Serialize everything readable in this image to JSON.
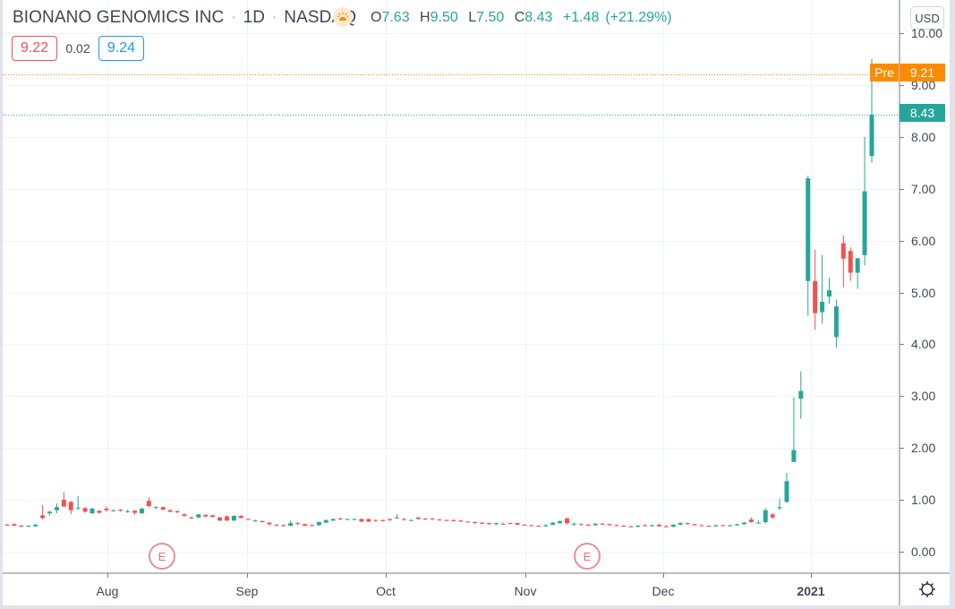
{
  "header": {
    "symbol_name": "BIONANO GENOMICS INC",
    "interval": "1D",
    "exchange": "NASDAQ",
    "separator": "·",
    "market_status_icon": "pre-market-sun-icon",
    "ohlc": {
      "open_label": "O",
      "open": "7.63",
      "high_label": "H",
      "high": "9.50",
      "low_label": "L",
      "low": "7.50",
      "close_label": "C",
      "close": "8.43",
      "change": "+1.48",
      "change_pct": "(+21.29%)"
    },
    "bid": "9.22",
    "spread": "0.02",
    "ask": "9.24"
  },
  "price_axis": {
    "currency": "USD",
    "ticks": [
      "10.00",
      "9.00",
      "8.00",
      "7.00",
      "6.00",
      "5.00",
      "4.00",
      "3.00",
      "2.00",
      "1.00",
      "0.00"
    ],
    "last_price_tag": "8.43",
    "premarket_label": "Pre",
    "premarket_price_tag": "9.21"
  },
  "time_axis": {
    "ticks": [
      "Aug",
      "Sep",
      "Oct",
      "Nov",
      "Dec",
      "2021"
    ],
    "settings_icon": "gear-icon"
  },
  "events": [
    {
      "type": "earnings",
      "label": "E"
    },
    {
      "type": "earnings",
      "label": "E"
    }
  ],
  "colors": {
    "up": "#26a69a",
    "down": "#ef5350",
    "premarket": "#fb8c00",
    "grid": "#f0f3fa",
    "axis_text": "#434651",
    "bid": "#ef5350",
    "ask": "#2196f3"
  },
  "chart_data": {
    "type": "candlestick",
    "title": "BIONANO GENOMICS INC · 1D · NASDAQ",
    "xlabel": "",
    "ylabel": "USD",
    "ylim": [
      -0.2,
      10.4
    ],
    "grid": true,
    "legend_position": "top-left",
    "x_ticks": [
      "Aug",
      "Sep",
      "Oct",
      "Nov",
      "Dec",
      "2021"
    ],
    "y_ticks": [
      0,
      1,
      2,
      3,
      4,
      5,
      6,
      7,
      8,
      9,
      10
    ],
    "last_close": 8.43,
    "premarket_price": 9.21,
    "annotations": [
      "Earnings (E) mid-Aug",
      "Earnings (E) mid-Nov",
      "Pre 9.21"
    ],
    "candles": [
      {
        "o": 0.52,
        "h": 0.54,
        "l": 0.5,
        "c": 0.51
      },
      {
        "o": 0.53,
        "h": 0.55,
        "l": 0.5,
        "c": 0.5
      },
      {
        "o": 0.5,
        "h": 0.52,
        "l": 0.47,
        "c": 0.49
      },
      {
        "o": 0.49,
        "h": 0.51,
        "l": 0.48,
        "c": 0.5
      },
      {
        "o": 0.49,
        "h": 0.54,
        "l": 0.48,
        "c": 0.52
      },
      {
        "o": 0.7,
        "h": 0.9,
        "l": 0.62,
        "c": 0.65
      },
      {
        "o": 0.74,
        "h": 0.79,
        "l": 0.7,
        "c": 0.77
      },
      {
        "o": 0.8,
        "h": 0.93,
        "l": 0.74,
        "c": 0.86
      },
      {
        "o": 1.0,
        "h": 1.15,
        "l": 0.88,
        "c": 0.87
      },
      {
        "o": 0.96,
        "h": 0.98,
        "l": 0.72,
        "c": 0.8
      },
      {
        "o": 0.85,
        "h": 1.07,
        "l": 0.81,
        "c": 0.85
      },
      {
        "o": 0.84,
        "h": 0.86,
        "l": 0.75,
        "c": 0.77
      },
      {
        "o": 0.74,
        "h": 0.85,
        "l": 0.73,
        "c": 0.83
      },
      {
        "o": 0.79,
        "h": 0.8,
        "l": 0.73,
        "c": 0.75
      },
      {
        "o": 0.83,
        "h": 0.87,
        "l": 0.77,
        "c": 0.8
      },
      {
        "o": 0.79,
        "h": 0.82,
        "l": 0.77,
        "c": 0.8
      },
      {
        "o": 0.81,
        "h": 0.82,
        "l": 0.77,
        "c": 0.79
      },
      {
        "o": 0.78,
        "h": 0.81,
        "l": 0.75,
        "c": 0.78
      },
      {
        "o": 0.79,
        "h": 0.8,
        "l": 0.71,
        "c": 0.75
      },
      {
        "o": 0.74,
        "h": 0.85,
        "l": 0.73,
        "c": 0.83
      },
      {
        "o": 0.98,
        "h": 1.05,
        "l": 0.85,
        "c": 0.88
      },
      {
        "o": 0.86,
        "h": 0.88,
        "l": 0.82,
        "c": 0.86
      },
      {
        "o": 0.86,
        "h": 0.87,
        "l": 0.8,
        "c": 0.81
      },
      {
        "o": 0.8,
        "h": 0.82,
        "l": 0.76,
        "c": 0.77
      },
      {
        "o": 0.78,
        "h": 0.8,
        "l": 0.74,
        "c": 0.76
      },
      {
        "o": 0.72,
        "h": 0.74,
        "l": 0.67,
        "c": 0.69
      },
      {
        "o": 0.66,
        "h": 0.68,
        "l": 0.63,
        "c": 0.64
      },
      {
        "o": 0.66,
        "h": 0.73,
        "l": 0.65,
        "c": 0.72
      },
      {
        "o": 0.71,
        "h": 0.72,
        "l": 0.66,
        "c": 0.68
      },
      {
        "o": 0.7,
        "h": 0.71,
        "l": 0.66,
        "c": 0.67
      },
      {
        "o": 0.66,
        "h": 0.67,
        "l": 0.59,
        "c": 0.6
      },
      {
        "o": 0.68,
        "h": 0.7,
        "l": 0.59,
        "c": 0.6
      },
      {
        "o": 0.6,
        "h": 0.7,
        "l": 0.59,
        "c": 0.69
      },
      {
        "o": 0.69,
        "h": 0.71,
        "l": 0.64,
        "c": 0.65
      },
      {
        "o": 0.63,
        "h": 0.64,
        "l": 0.61,
        "c": 0.62
      },
      {
        "o": 0.6,
        "h": 0.62,
        "l": 0.58,
        "c": 0.6
      },
      {
        "o": 0.59,
        "h": 0.6,
        "l": 0.56,
        "c": 0.57
      },
      {
        "o": 0.56,
        "h": 0.57,
        "l": 0.5,
        "c": 0.53
      },
      {
        "o": 0.52,
        "h": 0.53,
        "l": 0.49,
        "c": 0.51
      },
      {
        "o": 0.51,
        "h": 0.53,
        "l": 0.48,
        "c": 0.5
      },
      {
        "o": 0.5,
        "h": 0.6,
        "l": 0.49,
        "c": 0.55
      },
      {
        "o": 0.55,
        "h": 0.57,
        "l": 0.51,
        "c": 0.54
      },
      {
        "o": 0.53,
        "h": 0.54,
        "l": 0.49,
        "c": 0.5
      },
      {
        "o": 0.51,
        "h": 0.53,
        "l": 0.49,
        "c": 0.5
      },
      {
        "o": 0.51,
        "h": 0.58,
        "l": 0.5,
        "c": 0.57
      },
      {
        "o": 0.56,
        "h": 0.62,
        "l": 0.55,
        "c": 0.61
      },
      {
        "o": 0.6,
        "h": 0.64,
        "l": 0.59,
        "c": 0.63
      },
      {
        "o": 0.64,
        "h": 0.66,
        "l": 0.61,
        "c": 0.63
      },
      {
        "o": 0.63,
        "h": 0.64,
        "l": 0.61,
        "c": 0.63
      },
      {
        "o": 0.62,
        "h": 0.64,
        "l": 0.61,
        "c": 0.63
      },
      {
        "o": 0.63,
        "h": 0.64,
        "l": 0.57,
        "c": 0.58
      },
      {
        "o": 0.63,
        "h": 0.64,
        "l": 0.57,
        "c": 0.58
      },
      {
        "o": 0.61,
        "h": 0.62,
        "l": 0.58,
        "c": 0.6
      },
      {
        "o": 0.61,
        "h": 0.62,
        "l": 0.58,
        "c": 0.59
      },
      {
        "o": 0.63,
        "h": 0.64,
        "l": 0.59,
        "c": 0.61
      },
      {
        "o": 0.65,
        "h": 0.72,
        "l": 0.64,
        "c": 0.66
      },
      {
        "o": 0.63,
        "h": 0.65,
        "l": 0.6,
        "c": 0.62
      },
      {
        "o": 0.6,
        "h": 0.62,
        "l": 0.59,
        "c": 0.61
      },
      {
        "o": 0.66,
        "h": 0.67,
        "l": 0.62,
        "c": 0.63
      },
      {
        "o": 0.64,
        "h": 0.65,
        "l": 0.61,
        "c": 0.63
      },
      {
        "o": 0.64,
        "h": 0.65,
        "l": 0.61,
        "c": 0.63
      },
      {
        "o": 0.62,
        "h": 0.63,
        "l": 0.6,
        "c": 0.61
      },
      {
        "o": 0.61,
        "h": 0.62,
        "l": 0.59,
        "c": 0.6
      },
      {
        "o": 0.61,
        "h": 0.62,
        "l": 0.58,
        "c": 0.59
      },
      {
        "o": 0.6,
        "h": 0.61,
        "l": 0.57,
        "c": 0.58
      },
      {
        "o": 0.58,
        "h": 0.59,
        "l": 0.56,
        "c": 0.57
      },
      {
        "o": 0.57,
        "h": 0.58,
        "l": 0.54,
        "c": 0.55
      },
      {
        "o": 0.56,
        "h": 0.57,
        "l": 0.53,
        "c": 0.54
      },
      {
        "o": 0.55,
        "h": 0.56,
        "l": 0.52,
        "c": 0.53
      },
      {
        "o": 0.53,
        "h": 0.56,
        "l": 0.51,
        "c": 0.55
      },
      {
        "o": 0.54,
        "h": 0.56,
        "l": 0.52,
        "c": 0.53
      },
      {
        "o": 0.55,
        "h": 0.57,
        "l": 0.53,
        "c": 0.54
      },
      {
        "o": 0.55,
        "h": 0.56,
        "l": 0.51,
        "c": 0.52
      },
      {
        "o": 0.52,
        "h": 0.53,
        "l": 0.5,
        "c": 0.51
      },
      {
        "o": 0.51,
        "h": 0.52,
        "l": 0.49,
        "c": 0.5
      },
      {
        "o": 0.5,
        "h": 0.51,
        "l": 0.48,
        "c": 0.49
      },
      {
        "o": 0.49,
        "h": 0.53,
        "l": 0.48,
        "c": 0.51
      },
      {
        "o": 0.52,
        "h": 0.57,
        "l": 0.51,
        "c": 0.56
      },
      {
        "o": 0.55,
        "h": 0.6,
        "l": 0.54,
        "c": 0.59
      },
      {
        "o": 0.64,
        "h": 0.66,
        "l": 0.52,
        "c": 0.55
      },
      {
        "o": 0.53,
        "h": 0.56,
        "l": 0.5,
        "c": 0.54
      },
      {
        "o": 0.53,
        "h": 0.55,
        "l": 0.51,
        "c": 0.52
      },
      {
        "o": 0.52,
        "h": 0.54,
        "l": 0.49,
        "c": 0.51
      },
      {
        "o": 0.51,
        "h": 0.55,
        "l": 0.5,
        "c": 0.54
      },
      {
        "o": 0.54,
        "h": 0.56,
        "l": 0.52,
        "c": 0.53
      },
      {
        "o": 0.53,
        "h": 0.54,
        "l": 0.5,
        "c": 0.51
      },
      {
        "o": 0.51,
        "h": 0.53,
        "l": 0.49,
        "c": 0.5
      },
      {
        "o": 0.5,
        "h": 0.51,
        "l": 0.48,
        "c": 0.49
      },
      {
        "o": 0.49,
        "h": 0.5,
        "l": 0.47,
        "c": 0.48
      },
      {
        "o": 0.48,
        "h": 0.52,
        "l": 0.47,
        "c": 0.5
      },
      {
        "o": 0.51,
        "h": 0.53,
        "l": 0.49,
        "c": 0.5
      },
      {
        "o": 0.5,
        "h": 0.52,
        "l": 0.48,
        "c": 0.51
      },
      {
        "o": 0.52,
        "h": 0.54,
        "l": 0.48,
        "c": 0.49
      },
      {
        "o": 0.49,
        "h": 0.51,
        "l": 0.47,
        "c": 0.48
      },
      {
        "o": 0.48,
        "h": 0.53,
        "l": 0.47,
        "c": 0.52
      },
      {
        "o": 0.52,
        "h": 0.57,
        "l": 0.51,
        "c": 0.55
      },
      {
        "o": 0.55,
        "h": 0.56,
        "l": 0.52,
        "c": 0.53
      },
      {
        "o": 0.53,
        "h": 0.54,
        "l": 0.5,
        "c": 0.51
      },
      {
        "o": 0.51,
        "h": 0.52,
        "l": 0.49,
        "c": 0.5
      },
      {
        "o": 0.5,
        "h": 0.51,
        "l": 0.48,
        "c": 0.49
      },
      {
        "o": 0.49,
        "h": 0.52,
        "l": 0.48,
        "c": 0.51
      },
      {
        "o": 0.51,
        "h": 0.52,
        "l": 0.49,
        "c": 0.5
      },
      {
        "o": 0.5,
        "h": 0.52,
        "l": 0.48,
        "c": 0.51
      },
      {
        "o": 0.51,
        "h": 0.54,
        "l": 0.5,
        "c": 0.53
      },
      {
        "o": 0.53,
        "h": 0.57,
        "l": 0.52,
        "c": 0.56
      },
      {
        "o": 0.62,
        "h": 0.66,
        "l": 0.56,
        "c": 0.57
      },
      {
        "o": 0.55,
        "h": 0.61,
        "l": 0.54,
        "c": 0.56
      },
      {
        "o": 0.57,
        "h": 0.84,
        "l": 0.54,
        "c": 0.8
      },
      {
        "o": 0.72,
        "h": 0.74,
        "l": 0.63,
        "c": 0.66
      },
      {
        "o": 0.84,
        "h": 1.02,
        "l": 0.8,
        "c": 0.86
      },
      {
        "o": 0.96,
        "h": 1.52,
        "l": 0.94,
        "c": 1.36
      },
      {
        "o": 1.73,
        "h": 2.98,
        "l": 1.82,
        "c": 1.96
      },
      {
        "o": 2.95,
        "h": 3.48,
        "l": 2.56,
        "c": 3.1
      },
      {
        "o": 5.22,
        "h": 7.25,
        "l": 4.55,
        "c": 7.2
      },
      {
        "o": 5.22,
        "h": 5.82,
        "l": 4.28,
        "c": 4.6
      },
      {
        "o": 4.62,
        "h": 5.72,
        "l": 4.4,
        "c": 4.82
      },
      {
        "o": 4.92,
        "h": 5.28,
        "l": 4.78,
        "c": 5.04
      },
      {
        "o": 4.14,
        "h": 4.86,
        "l": 3.93,
        "c": 4.73
      },
      {
        "o": 5.95,
        "h": 6.1,
        "l": 5.1,
        "c": 5.65
      },
      {
        "o": 5.8,
        "h": 5.87,
        "l": 5.22,
        "c": 5.38
      },
      {
        "o": 5.38,
        "h": 5.66,
        "l": 5.07,
        "c": 5.66
      },
      {
        "o": 5.72,
        "h": 8.0,
        "l": 5.52,
        "c": 6.95
      },
      {
        "o": 7.63,
        "h": 9.5,
        "l": 7.5,
        "c": 8.43
      }
    ]
  }
}
